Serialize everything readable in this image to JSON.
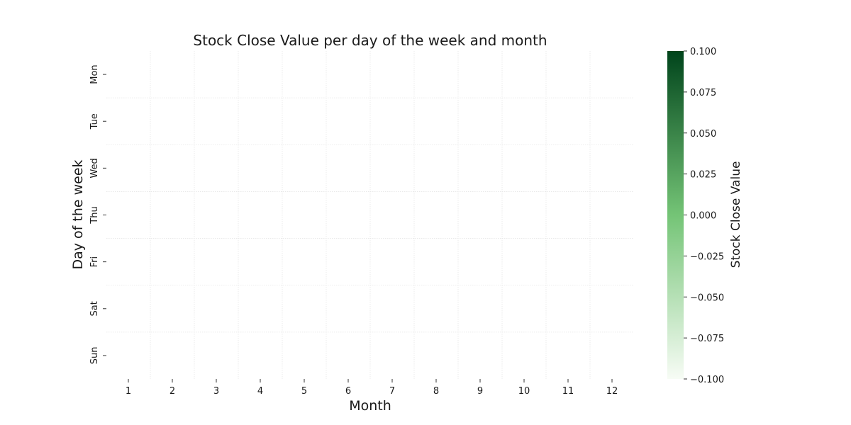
{
  "chart_data": {
    "type": "heatmap",
    "title": "Stock Close Value per day of the week and month",
    "xlabel": "Month",
    "ylabel": "Day of the week",
    "x_categories": [
      "1",
      "2",
      "3",
      "4",
      "5",
      "6",
      "7",
      "8",
      "9",
      "10",
      "11",
      "12"
    ],
    "y_categories": [
      "Mon",
      "Tue",
      "Wed",
      "Thu",
      "Fri",
      "Sat",
      "Sun"
    ],
    "values": [
      [
        null,
        null,
        null,
        null,
        null,
        null,
        null,
        null,
        null,
        null,
        null,
        null
      ],
      [
        null,
        null,
        null,
        null,
        null,
        null,
        null,
        null,
        null,
        null,
        null,
        null
      ],
      [
        null,
        null,
        null,
        null,
        null,
        null,
        null,
        null,
        null,
        null,
        null,
        null
      ],
      [
        null,
        null,
        null,
        null,
        null,
        null,
        null,
        null,
        null,
        null,
        null,
        null
      ],
      [
        null,
        null,
        null,
        null,
        null,
        null,
        null,
        null,
        null,
        null,
        null,
        null
      ],
      [
        null,
        null,
        null,
        null,
        null,
        null,
        null,
        null,
        null,
        null,
        null,
        null
      ],
      [
        null,
        null,
        null,
        null,
        null,
        null,
        null,
        null,
        null,
        null,
        null,
        null
      ]
    ],
    "colorbar": {
      "label": "Stock Close Value",
      "range": [
        -0.1,
        0.1
      ],
      "ticks": [
        "0.100",
        "0.075",
        "0.050",
        "0.025",
        "0.000",
        "−0.025",
        "−0.050",
        "−0.075",
        "−0.100"
      ],
      "colormap": "Greens",
      "color_low": "#f7fcf5",
      "color_mid": "#74c476",
      "color_high": "#00441b"
    },
    "grid": true,
    "grid_color": "#e6e6e6"
  }
}
